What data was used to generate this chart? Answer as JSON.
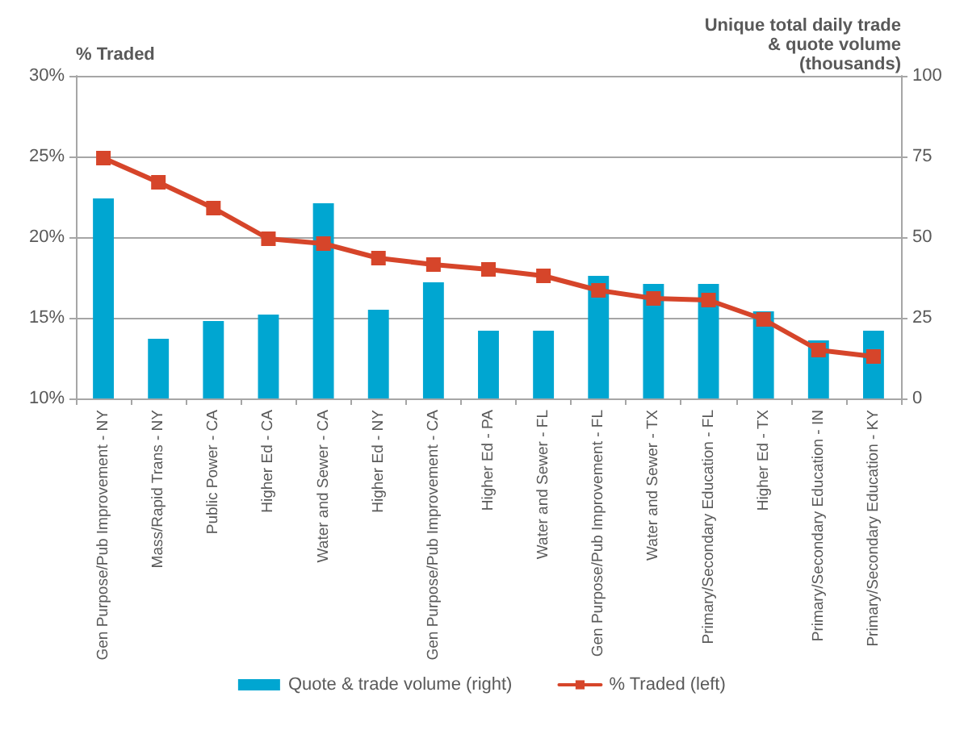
{
  "chart_data": {
    "type": "bar",
    "categories": [
      "Gen Purpose/Pub Improvement - NY",
      "Mass/Rapid Trans - NY",
      "Public Power - CA",
      "Higher Ed - CA",
      "Water and Sewer - CA",
      "Higher Ed - NY",
      "Gen Purpose/Pub Improvement - CA",
      "Higher Ed - PA",
      "Water and Sewer - FL",
      "Gen Purpose/Pub Improvement - FL",
      "Water and Sewer - TX",
      "Primary/Secondary Education - FL",
      "Higher Ed - TX",
      "Primary/Secondary Education - IN",
      "Primary/Secondary Education - KY"
    ],
    "series": [
      {
        "name": "Quote & trade volume (right)",
        "axis": "y2",
        "color": "#00a6d1",
        "values": [
          62,
          18.5,
          24,
          26,
          60.5,
          27.5,
          36,
          21,
          21,
          38,
          35.5,
          35.5,
          27,
          18,
          21
        ]
      },
      {
        "name": "% Traded (left)",
        "type": "line",
        "color": "#d6452a",
        "marker": "square",
        "values": [
          24.9,
          23.4,
          21.8,
          19.9,
          19.6,
          18.7,
          18.3,
          18.0,
          17.6,
          16.7,
          16.2,
          16.1,
          14.9,
          13.0,
          12.6
        ]
      }
    ],
    "ylabel": "% Traded",
    "y2label": "Unique total daily trade\n& quote volume\n(thousands)",
    "ylim": [
      10,
      30
    ],
    "yticks": [
      {
        "value": 10,
        "label": "10%"
      },
      {
        "value": 15,
        "label": "15%"
      },
      {
        "value": 20,
        "label": "20%"
      },
      {
        "value": 25,
        "label": "25%"
      },
      {
        "value": 30,
        "label": "30%"
      }
    ],
    "y2lim": [
      0,
      100
    ],
    "y2ticks": [
      0,
      25,
      50,
      75,
      100
    ],
    "grid": "y",
    "legend": "bottom"
  }
}
